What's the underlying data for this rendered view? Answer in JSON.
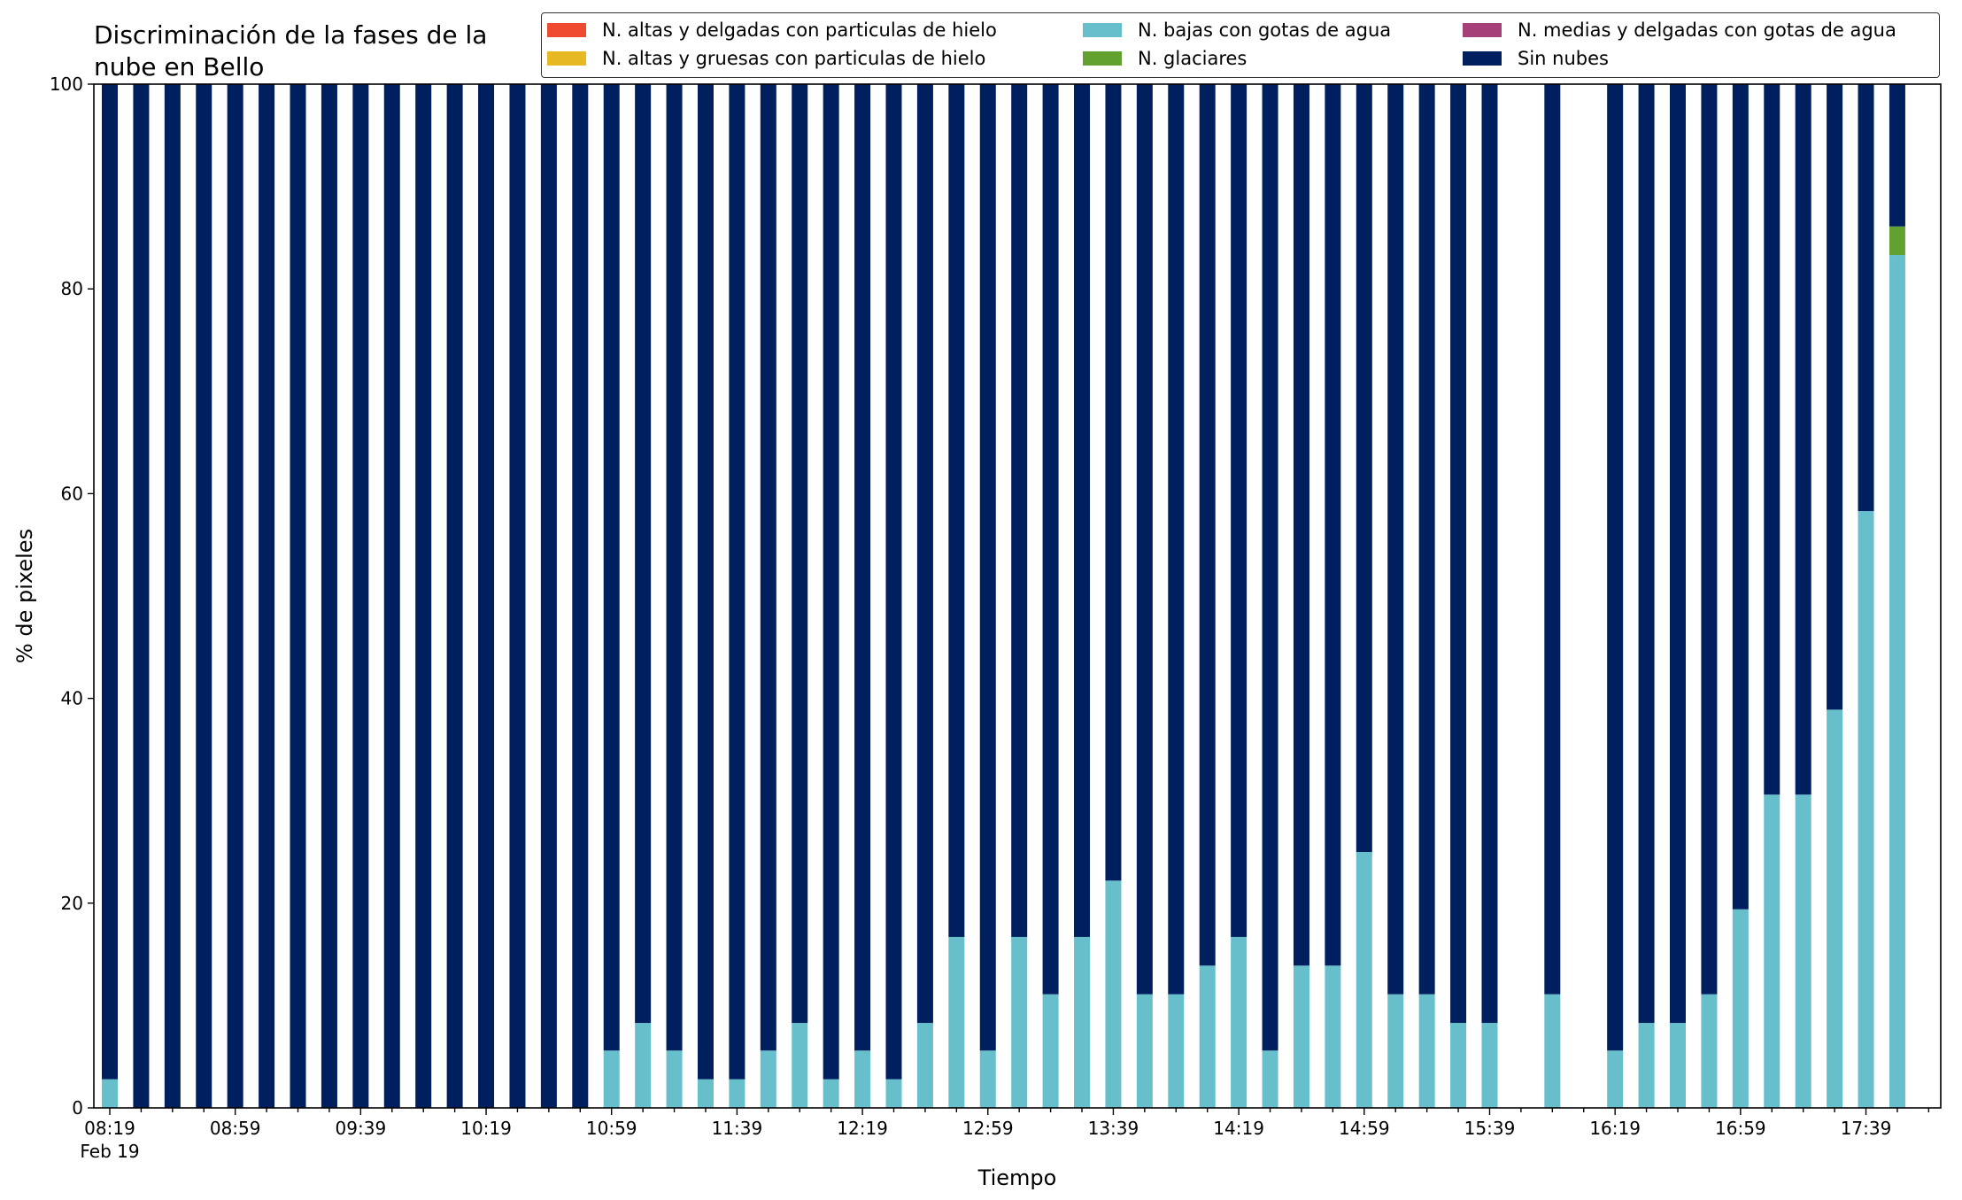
{
  "chart_data": {
    "type": "bar",
    "stacked": true,
    "title": "Discriminación de la fases de la\nnube en Bello",
    "xlabel": "Tiempo",
    "ylabel": "% de pixeles",
    "ylim": [
      0,
      100
    ],
    "yticks": [
      0,
      20,
      40,
      60,
      80,
      100
    ],
    "grid": false,
    "legend_position": "top-right",
    "colors": {
      "altas_delgadas": "#ee4a2f",
      "altas_gruesas": "#e6b922",
      "bajas": "#67bfcc",
      "glaciares": "#62a030",
      "medias": "#a64079",
      "sin_nubes": "#001f5f"
    },
    "legend": [
      {
        "key": "altas_delgadas",
        "label": "N. altas y delgadas con particulas de hielo"
      },
      {
        "key": "altas_gruesas",
        "label": "N. altas y gruesas con particulas de hielo"
      },
      {
        "key": "bajas",
        "label": "N. bajas con gotas de agua"
      },
      {
        "key": "glaciares",
        "label": "N. glaciares"
      },
      {
        "key": "medias",
        "label": "N. medias y delgadas con gotas de agua"
      },
      {
        "key": "sin_nubes",
        "label": "Sin nubes"
      }
    ],
    "x_tick_labels": [
      "08:19",
      "08:59",
      "09:39",
      "10:19",
      "10:59",
      "11:39",
      "12:19",
      "12:59",
      "13:39",
      "14:19",
      "14:59",
      "15:39",
      "16:19",
      "16:59",
      "17:39"
    ],
    "x_tick_sublabel": "Feb 19",
    "x": [
      "08:19",
      "08:29",
      "08:39",
      "08:49",
      "08:59",
      "09:09",
      "09:19",
      "09:29",
      "09:39",
      "09:49",
      "09:59",
      "10:09",
      "10:19",
      "10:29",
      "10:39",
      "10:49",
      "10:59",
      "11:09",
      "11:19",
      "11:29",
      "11:39",
      "11:49",
      "11:59",
      "12:09",
      "12:19",
      "12:29",
      "12:39",
      "12:49",
      "12:59",
      "13:09",
      "13:19",
      "13:29",
      "13:39",
      "13:49",
      "13:59",
      "14:09",
      "14:19",
      "14:29",
      "14:39",
      "14:49",
      "14:59",
      "15:09",
      "15:19",
      "15:29",
      "15:39",
      "15:49",
      "15:59",
      "16:09",
      "16:19",
      "16:29",
      "16:39",
      "16:49",
      "16:59",
      "17:09",
      "17:19",
      "17:29",
      "17:39",
      "17:49"
    ],
    "series": [
      {
        "key": "altas_delgadas",
        "name": "N. altas y delgadas con particulas de hielo",
        "values": [
          0,
          0,
          0,
          0,
          0,
          0,
          0,
          0,
          0,
          0,
          0,
          0,
          0,
          0,
          0,
          0,
          0,
          0,
          0,
          0,
          0,
          0,
          0,
          0,
          0,
          0,
          0,
          0,
          0,
          0,
          0,
          0,
          0,
          0,
          0,
          0,
          0,
          0,
          0,
          0,
          0,
          0,
          0,
          0,
          0,
          0,
          0,
          0,
          0,
          0,
          0,
          0,
          0,
          0,
          0,
          0,
          0,
          0
        ]
      },
      {
        "key": "altas_gruesas",
        "name": "N. altas y gruesas con particulas de hielo",
        "values": [
          0,
          0,
          0,
          0,
          0,
          0,
          0,
          0,
          0,
          0,
          0,
          0,
          0,
          0,
          0,
          0,
          0,
          0,
          0,
          0,
          0,
          0,
          0,
          0,
          0,
          0,
          0,
          0,
          0,
          0,
          0,
          0,
          0,
          0,
          0,
          0,
          0,
          0,
          0,
          0,
          0,
          0,
          0,
          0,
          0,
          0,
          0,
          0,
          0,
          0,
          0,
          0,
          0,
          0,
          0,
          0,
          0,
          0
        ]
      },
      {
        "key": "bajas",
        "name": "N. bajas con gotas de agua",
        "values": [
          2.8,
          0,
          0,
          0,
          0,
          0,
          0,
          0,
          0,
          0,
          0,
          0,
          0,
          0,
          0,
          0,
          5.6,
          8.3,
          5.6,
          2.8,
          2.8,
          5.6,
          8.3,
          2.8,
          5.6,
          2.8,
          8.3,
          16.7,
          5.6,
          16.7,
          11.1,
          16.7,
          22.2,
          11.1,
          11.1,
          13.9,
          16.7,
          5.6,
          13.9,
          13.9,
          25.0,
          11.1,
          11.1,
          8.3,
          8.3,
          0,
          11.1,
          0,
          5.6,
          8.3,
          8.3,
          11.1,
          19.4,
          30.6,
          30.6,
          38.9,
          58.3,
          83.3
        ]
      },
      {
        "key": "glaciares",
        "name": "N. glaciares",
        "values": [
          0,
          0,
          0,
          0,
          0,
          0,
          0,
          0,
          0,
          0,
          0,
          0,
          0,
          0,
          0,
          0,
          0,
          0,
          0,
          0,
          0,
          0,
          0,
          0,
          0,
          0,
          0,
          0,
          0,
          0,
          0,
          0,
          0,
          0,
          0,
          0,
          0,
          0,
          0,
          0,
          0,
          0,
          0,
          0,
          0,
          0,
          0,
          0,
          0,
          0,
          0,
          0,
          0,
          0,
          0,
          0,
          0,
          2.8
        ]
      },
      {
        "key": "medias",
        "name": "N. medias y delgadas con gotas de agua",
        "values": [
          0,
          0,
          0,
          0,
          0,
          0,
          0,
          0,
          0,
          0,
          0,
          0,
          0,
          0,
          0,
          0,
          0,
          0,
          0,
          0,
          0,
          0,
          0,
          0,
          0,
          0,
          0,
          0,
          0,
          0,
          0,
          0,
          0,
          0,
          0,
          0,
          0,
          0,
          0,
          0,
          0,
          0,
          0,
          0,
          0,
          0,
          0,
          0,
          0,
          0,
          0,
          0,
          0,
          0,
          0,
          0,
          0,
          0
        ]
      },
      {
        "key": "sin_nubes",
        "name": "Sin nubes",
        "values": [
          97.2,
          100,
          100,
          100,
          100,
          100,
          100,
          100,
          100,
          100,
          100,
          100,
          100,
          100,
          100,
          100,
          94.4,
          91.7,
          94.4,
          97.2,
          97.2,
          94.4,
          91.7,
          97.2,
          94.4,
          97.2,
          91.7,
          83.3,
          94.4,
          83.3,
          88.9,
          83.3,
          77.8,
          88.9,
          88.9,
          86.1,
          83.3,
          94.4,
          86.1,
          86.1,
          75.0,
          88.9,
          88.9,
          91.7,
          91.7,
          0,
          88.9,
          0,
          94.4,
          91.7,
          91.7,
          88.9,
          80.6,
          69.4,
          69.4,
          61.1,
          41.7,
          13.9
        ]
      }
    ]
  }
}
